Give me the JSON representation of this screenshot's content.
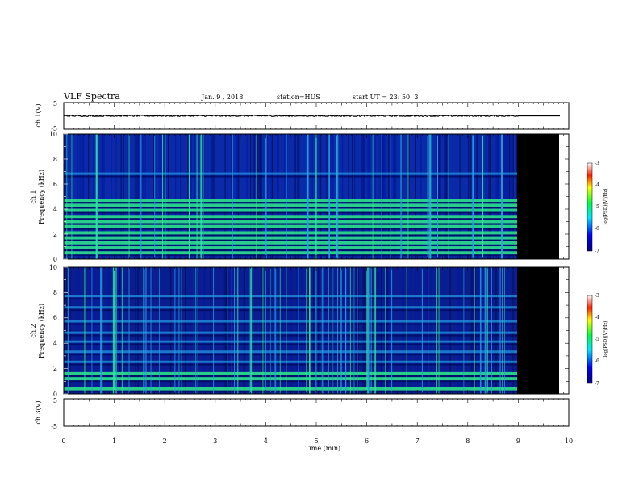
{
  "header": {
    "title": "VLF Spectra",
    "date": "Jan. 9 , 2018",
    "station": "station=HUS",
    "start": "start UT = 23: 50: 3"
  },
  "colors": {
    "background": "#001a8c",
    "band_strong": "#2ce08a",
    "band_medium": "#1f8fd8",
    "no_data": "#000000",
    "trace": "#000000"
  },
  "chart_data": [
    {
      "type": "line",
      "ylabel": "ch.1(V)",
      "yticks": [
        "5",
        "-5"
      ],
      "ylim": [
        -5,
        5
      ],
      "x_extent_min": [
        0,
        10
      ],
      "trace": {
        "x_range": [
          0,
          9.83
        ],
        "level": 0.0,
        "noise_until_min": 9.0
      }
    },
    {
      "type": "heatmap",
      "ylabel_top": "ch.1",
      "ylabel": "Frequency (kHz)",
      "ylim": [
        0,
        10
      ],
      "yticks": [
        "0",
        "2",
        "4",
        "6",
        "8",
        "10"
      ],
      "data_until_min": 9.0,
      "x_end_min": 9.83,
      "bands_khz": [
        0.5,
        0.9,
        1.3,
        1.7,
        2.1,
        2.6,
        3.0,
        3.4,
        3.9,
        4.3,
        4.7,
        6.8
      ],
      "colorbar": {
        "label": "log(PSD)(V²/Hz)",
        "ticks": [
          "-3",
          "-4",
          "-5",
          "-6",
          "-7"
        ],
        "range": [
          -7,
          -3
        ]
      }
    },
    {
      "type": "heatmap",
      "ylabel_top": "ch.2",
      "ylabel": "Frequency (kHz)",
      "ylim": [
        0,
        10
      ],
      "yticks": [
        "0",
        "2",
        "4",
        "6",
        "8",
        "10"
      ],
      "data_until_min": 9.0,
      "x_end_min": 9.83,
      "bands_khz": [
        0.4,
        1.2,
        1.6,
        2.5,
        3.3,
        4.1,
        4.8,
        5.7,
        6.8,
        7.7
      ],
      "colorbar": {
        "label": "log(PSD)(V²/Hz)",
        "ticks": [
          "-3",
          "-4",
          "-5",
          "-6",
          "-7"
        ],
        "range": [
          -7,
          -3
        ]
      }
    },
    {
      "type": "line",
      "ylabel": "ch.3(V)",
      "yticks": [
        "5",
        "-5"
      ],
      "ylim": [
        -5,
        5
      ],
      "trace": {
        "x_range": [
          0,
          9.83
        ],
        "level": -1.6
      }
    }
  ],
  "xaxis": {
    "label": "Time (min)",
    "ticks": [
      "0",
      "1",
      "2",
      "3",
      "4",
      "5",
      "6",
      "7",
      "8",
      "9",
      "10"
    ],
    "range": [
      0,
      10
    ]
  }
}
